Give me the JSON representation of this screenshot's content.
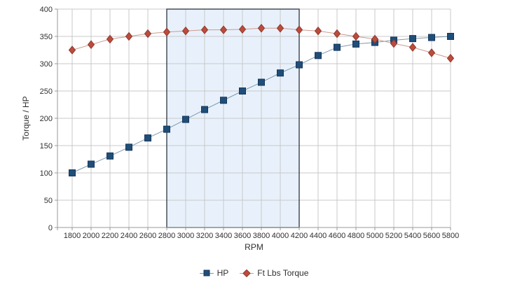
{
  "chart_data": {
    "type": "line",
    "title": "",
    "xlabel": "RPM",
    "ylabel": "Torque / HP",
    "ylim": [
      0,
      400
    ],
    "ystep": 50,
    "grid": true,
    "legend_position": "bottom",
    "x": [
      1800,
      2000,
      2200,
      2400,
      2600,
      2800,
      3000,
      3200,
      3400,
      3600,
      3800,
      4000,
      4200,
      4400,
      4600,
      4800,
      5000,
      5200,
      5400,
      5600,
      5800
    ],
    "series": [
      {
        "name": "HP",
        "marker": "square",
        "marker_color": "#1f4e79",
        "marker_border": "#16365c",
        "line_color": "#7e99ad",
        "values": [
          100,
          116,
          131,
          147,
          164,
          180,
          198,
          216,
          233,
          250,
          266,
          283,
          298,
          315,
          330,
          336,
          339,
          343,
          346,
          348,
          350
        ]
      },
      {
        "name": "Ft Lbs Torque",
        "marker": "diamond",
        "marker_color": "#bd4b3c",
        "marker_border": "#8e3a2e",
        "line_color": "#cc9b8f",
        "values": [
          325,
          335,
          345,
          350,
          355,
          358,
          360,
          362,
          362,
          363,
          365,
          365,
          362,
          360,
          355,
          350,
          345,
          337,
          330,
          320,
          310
        ]
      }
    ],
    "highlight_band": {
      "from": 2800,
      "to": 4200,
      "fill": "#e8f1fb",
      "border": "#39424e"
    },
    "grid_color": "#c9c9c9",
    "axis_color": "#9a9a9a",
    "text_color": "#303030"
  }
}
